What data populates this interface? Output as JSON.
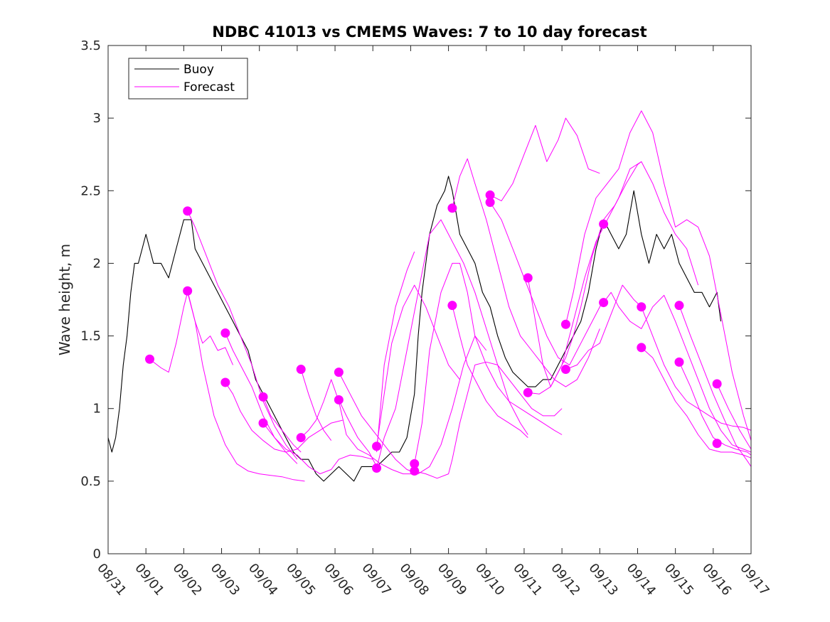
{
  "chart_data": {
    "type": "line",
    "title": "NDBC 41013 vs CMEMS Waves: 7 to 10 day forecast",
    "xlabel": "",
    "ylabel": "Wave height, m",
    "xlim": [
      0,
      17
    ],
    "ylim": [
      0,
      3.5
    ],
    "yticks": [
      0,
      0.5,
      1,
      1.5,
      2,
      2.5,
      3,
      3.5
    ],
    "ytick_labels": [
      "0",
      "0.5",
      "1",
      "1.5",
      "2",
      "2.5",
      "3",
      "3.5"
    ],
    "x_unit": "days since 08/31",
    "xtick_labels": [
      "08/31",
      "09/01",
      "09/02",
      "09/03",
      "09/04",
      "09/05",
      "09/06",
      "09/07",
      "09/08",
      "09/09",
      "09/10",
      "09/11",
      "09/12",
      "09/13",
      "09/14",
      "09/15",
      "09/16",
      "09/17"
    ],
    "legend": {
      "position": "top-left",
      "entries": [
        "Buoy",
        "Forecast"
      ]
    },
    "colors": {
      "buoy": "#000000",
      "forecast": "#ff00ff",
      "axes": "#262626"
    },
    "series": [
      {
        "name": "Buoy",
        "color": "#000000",
        "x": [
          0,
          0.1,
          0.2,
          0.3,
          0.4,
          0.5,
          0.6,
          0.7,
          0.8,
          0.9,
          1.0,
          1.2,
          1.4,
          1.6,
          1.8,
          2.0,
          2.1,
          2.2,
          2.3,
          2.5,
          2.7,
          2.9,
          3.1,
          3.3,
          3.5,
          3.7,
          3.9,
          4.1,
          4.3,
          4.5,
          4.7,
          4.9,
          5.1,
          5.3,
          5.5,
          5.7,
          5.9,
          6.1,
          6.3,
          6.5,
          6.7,
          6.9,
          7.1,
          7.3,
          7.5,
          7.7,
          7.9,
          8.1,
          8.2,
          8.3,
          8.4,
          8.5,
          8.7,
          8.9,
          9.0,
          9.1,
          9.2,
          9.3,
          9.5,
          9.7,
          9.9,
          10.1,
          10.3,
          10.5,
          10.7,
          10.9,
          11.1,
          11.3,
          11.5,
          11.7,
          11.9,
          12.1,
          12.3,
          12.5,
          12.7,
          12.9,
          13.1,
          13.3,
          13.5,
          13.7,
          13.9,
          14.1,
          14.3,
          14.5,
          14.7,
          14.9,
          15.1,
          15.3,
          15.5,
          15.7,
          15.9,
          16.1,
          16.2
        ],
        "values": [
          0.8,
          0.7,
          0.8,
          1.0,
          1.3,
          1.5,
          1.8,
          2.0,
          2.0,
          2.1,
          2.2,
          2.0,
          2.0,
          1.9,
          2.1,
          2.3,
          2.3,
          2.3,
          2.1,
          2.0,
          1.9,
          1.8,
          1.7,
          1.6,
          1.5,
          1.4,
          1.2,
          1.1,
          1.0,
          0.9,
          0.8,
          0.7,
          0.65,
          0.65,
          0.55,
          0.5,
          0.55,
          0.6,
          0.55,
          0.5,
          0.6,
          0.6,
          0.6,
          0.65,
          0.7,
          0.7,
          0.8,
          1.1,
          1.5,
          1.8,
          2.0,
          2.2,
          2.4,
          2.5,
          2.6,
          2.5,
          2.35,
          2.2,
          2.1,
          2.0,
          1.8,
          1.7,
          1.5,
          1.35,
          1.25,
          1.2,
          1.15,
          1.15,
          1.2,
          1.2,
          1.3,
          1.4,
          1.5,
          1.6,
          1.8,
          2.1,
          2.3,
          2.2,
          2.1,
          2.2,
          2.5,
          2.2,
          2.0,
          2.2,
          2.1,
          2.2,
          2.0,
          1.9,
          1.8,
          1.8,
          1.7,
          1.8,
          1.6
        ]
      },
      {
        "name": "Forecast",
        "color": "#ff00ff",
        "x": [
          1.1,
          1.4,
          1.6,
          1.8,
          2.0,
          2.1,
          2.3,
          2.5,
          2.7,
          2.9,
          3.1,
          3.3
        ],
        "values": [
          1.34,
          1.28,
          1.25,
          1.45,
          1.7,
          1.8,
          1.6,
          1.45,
          1.5,
          1.4,
          1.42,
          1.3
        ]
      },
      {
        "name": "Forecast",
        "color": "#ff00ff",
        "x": [
          2.1,
          2.3,
          2.5,
          2.8,
          3.1,
          3.4,
          3.7,
          4.0,
          4.3,
          4.6,
          4.9,
          5.2
        ],
        "values": [
          1.81,
          1.6,
          1.3,
          0.95,
          0.75,
          0.62,
          0.57,
          0.55,
          0.54,
          0.53,
          0.51,
          0.5
        ]
      },
      {
        "name": "Forecast",
        "color": "#ff00ff",
        "x": [
          2.1,
          2.3,
          2.6,
          2.9,
          3.2,
          3.5,
          3.8,
          4.1,
          4.4,
          4.7,
          5.0
        ],
        "values": [
          2.36,
          2.25,
          2.05,
          1.85,
          1.7,
          1.5,
          1.3,
          1.05,
          0.88,
          0.75,
          0.65
        ]
      },
      {
        "name": "Forecast",
        "color": "#ff00ff",
        "x": [
          3.1,
          3.3,
          3.5,
          3.8,
          4.1,
          4.4,
          4.7,
          5.0,
          5.3,
          5.6,
          5.9,
          6.2
        ],
        "values": [
          1.18,
          1.1,
          0.98,
          0.85,
          0.78,
          0.72,
          0.7,
          0.72,
          0.8,
          0.85,
          0.9,
          0.92
        ]
      },
      {
        "name": "Forecast",
        "color": "#ff00ff",
        "x": [
          3.1,
          3.3,
          3.5,
          3.8,
          4.1,
          4.4,
          4.7,
          5.0
        ],
        "values": [
          1.52,
          1.4,
          1.3,
          1.15,
          0.95,
          0.8,
          0.7,
          0.62
        ]
      },
      {
        "name": "Forecast",
        "color": "#ff00ff",
        "x": [
          4.1,
          4.3,
          4.6,
          4.9,
          5.1
        ],
        "values": [
          1.08,
          0.95,
          0.85,
          0.75,
          0.7
        ]
      },
      {
        "name": "Forecast",
        "color": "#ff00ff",
        "x": [
          4.1,
          4.4,
          4.7,
          5.0,
          5.3,
          5.6,
          5.9,
          6.1,
          6.4,
          6.7,
          7.0
        ],
        "values": [
          0.9,
          0.8,
          0.72,
          0.68,
          0.6,
          0.55,
          0.58,
          0.65,
          0.68,
          0.67,
          0.65
        ]
      },
      {
        "name": "Forecast",
        "color": "#ff00ff",
        "x": [
          5.1,
          5.3,
          5.5,
          5.7,
          5.9,
          6.1,
          6.3,
          6.6,
          6.9,
          7.2,
          7.5,
          7.8,
          8.1
        ],
        "values": [
          0.8,
          0.85,
          0.92,
          1.05,
          1.2,
          1.05,
          0.82,
          0.72,
          0.68,
          0.62,
          0.58,
          0.55,
          0.55
        ]
      },
      {
        "name": "Forecast",
        "color": "#ff00ff",
        "x": [
          5.1,
          5.3,
          5.5,
          5.7,
          5.9
        ],
        "values": [
          1.27,
          1.1,
          0.95,
          0.85,
          0.78
        ]
      },
      {
        "name": "Forecast",
        "color": "#ff00ff",
        "x": [
          6.1,
          6.4,
          6.7,
          7.0,
          7.3,
          7.6,
          7.9,
          8.2,
          8.5,
          8.8,
          9.1,
          9.4,
          9.7,
          10.0
        ],
        "values": [
          1.25,
          1.1,
          0.95,
          0.85,
          0.75,
          0.65,
          0.58,
          0.55,
          0.6,
          0.75,
          1.0,
          1.3,
          1.5,
          1.4
        ]
      },
      {
        "name": "Forecast",
        "color": "#ff00ff",
        "x": [
          6.1,
          6.3,
          6.6,
          6.9,
          7.1
        ],
        "values": [
          1.06,
          0.95,
          0.8,
          0.7,
          0.6
        ]
      },
      {
        "name": "Forecast",
        "color": "#ff00ff",
        "x": [
          7.1,
          7.3,
          7.5,
          7.8,
          8.1,
          8.4,
          8.7,
          9.0,
          9.3
        ],
        "values": [
          0.74,
          1.1,
          1.45,
          1.7,
          1.85,
          1.7,
          1.5,
          1.3,
          1.2
        ]
      },
      {
        "name": "Forecast",
        "color": "#ff00ff",
        "x": [
          7.1,
          7.3,
          7.6,
          7.9,
          8.2,
          8.5,
          8.8,
          9.1,
          9.4,
          9.7,
          10.0,
          10.3,
          10.6,
          10.9,
          11.1
        ],
        "values": [
          0.59,
          0.8,
          1.0,
          1.4,
          1.8,
          2.2,
          2.3,
          2.15,
          2.0,
          1.8,
          1.55,
          1.3,
          1.05,
          0.9,
          0.82
        ]
      },
      {
        "name": "Forecast",
        "color": "#ff00ff",
        "x": [
          7.1,
          7.3,
          7.6,
          7.9,
          8.1
        ],
        "values": [
          0.7,
          1.3,
          1.7,
          1.95,
          2.08
        ]
      },
      {
        "name": "Forecast",
        "color": "#ff00ff",
        "x": [
          8.1,
          8.3,
          8.5,
          8.8,
          9.1,
          9.3,
          9.5,
          9.7,
          10.0,
          10.3,
          10.6,
          10.9,
          11.2,
          11.5,
          11.8,
          12.0
        ],
        "values": [
          0.62,
          0.9,
          1.4,
          1.8,
          2.0,
          2.0,
          1.8,
          1.5,
          1.3,
          1.15,
          1.05,
          1.0,
          0.95,
          0.9,
          0.85,
          0.82
        ]
      },
      {
        "name": "Forecast",
        "color": "#ff00ff",
        "x": [
          8.1,
          8.4,
          8.7,
          9.0,
          9.1,
          9.3,
          9.5,
          9.7,
          10.0,
          10.3,
          10.6,
          10.9,
          11.2,
          11.5,
          11.8,
          12.0
        ],
        "values": [
          0.57,
          0.55,
          0.52,
          0.55,
          0.65,
          0.9,
          1.1,
          1.3,
          1.32,
          1.3,
          1.2,
          1.1,
          1.0,
          0.95,
          0.95,
          1.0
        ]
      },
      {
        "name": "Forecast",
        "color": "#ff00ff",
        "x": [
          9.1,
          9.3,
          9.5,
          9.7,
          10.0,
          10.3,
          10.6,
          10.9,
          11.2,
          11.5,
          11.8,
          12.1,
          12.4,
          12.7,
          13.0
        ],
        "values": [
          2.38,
          2.6,
          2.72,
          2.55,
          2.3,
          2.0,
          1.7,
          1.5,
          1.4,
          1.3,
          1.2,
          1.15,
          1.2,
          1.35,
          1.55
        ]
      },
      {
        "name": "Forecast",
        "color": "#ff00ff",
        "x": [
          9.1,
          9.3,
          9.5,
          9.7,
          10.0,
          10.3,
          10.6,
          10.9,
          11.1
        ],
        "values": [
          1.71,
          1.5,
          1.3,
          1.2,
          1.05,
          0.95,
          0.9,
          0.85,
          0.8
        ]
      },
      {
        "name": "Forecast",
        "color": "#ff00ff",
        "x": [
          10.1,
          10.4,
          10.7,
          11.0,
          11.3,
          11.6,
          11.9,
          12.1,
          12.4,
          12.7,
          13.0
        ],
        "values": [
          2.47,
          2.43,
          2.55,
          2.75,
          2.95,
          2.7,
          2.85,
          3.0,
          2.88,
          2.65,
          2.62
        ]
      },
      {
        "name": "Forecast",
        "color": "#ff00ff",
        "x": [
          10.1,
          10.4,
          10.7,
          11.0,
          11.3,
          11.6,
          11.9,
          12.2,
          12.5,
          12.8,
          13.1
        ],
        "values": [
          2.42,
          2.3,
          2.1,
          1.9,
          1.7,
          1.5,
          1.35,
          1.3,
          1.45,
          1.6,
          1.75
        ]
      },
      {
        "name": "Forecast",
        "color": "#ff00ff",
        "x": [
          11.1,
          11.3,
          11.5,
          11.7,
          11.9,
          12.1,
          12.3,
          12.5,
          12.8,
          13.1,
          13.4,
          13.7,
          14.0,
          14.1
        ],
        "values": [
          1.9,
          1.6,
          1.3,
          1.15,
          1.25,
          1.35,
          1.5,
          1.7,
          2.05,
          2.3,
          2.4,
          2.55,
          2.68,
          2.7
        ]
      },
      {
        "name": "Forecast",
        "color": "#ff00ff",
        "x": [
          11.1,
          11.4,
          11.7,
          12.0,
          12.3,
          12.6,
          12.9,
          13.2,
          13.5,
          13.8,
          14.1,
          14.4,
          14.7,
          15.0,
          15.3,
          15.6
        ],
        "values": [
          1.11,
          1.1,
          1.15,
          1.3,
          1.6,
          1.9,
          2.15,
          2.3,
          2.45,
          2.65,
          2.7,
          2.55,
          2.35,
          2.2,
          2.1,
          1.85
        ]
      },
      {
        "name": "Forecast",
        "color": "#ff00ff",
        "x": [
          12.1,
          12.3,
          12.6,
          12.9,
          13.2,
          13.5,
          13.8,
          14.1,
          14.4,
          14.7,
          15.0,
          15.3,
          15.6,
          15.9,
          16.2,
          16.5,
          16.8,
          17.0
        ],
        "values": [
          1.58,
          1.8,
          2.2,
          2.45,
          2.55,
          2.65,
          2.9,
          3.05,
          2.9,
          2.55,
          2.25,
          2.3,
          2.25,
          2.05,
          1.65,
          1.25,
          0.95,
          0.78
        ]
      },
      {
        "name": "Forecast",
        "color": "#ff00ff",
        "x": [
          12.1,
          12.4,
          12.7,
          13.0,
          13.3,
          13.6,
          13.9,
          14.1,
          14.4,
          14.7,
          15.0,
          15.3,
          15.6,
          15.9,
          16.2,
          16.5,
          16.8,
          17.0
        ],
        "values": [
          1.27,
          1.3,
          1.4,
          1.45,
          1.65,
          1.85,
          1.75,
          1.7,
          1.5,
          1.3,
          1.15,
          1.05,
          1.0,
          0.95,
          0.9,
          0.88,
          0.87,
          0.85
        ]
      },
      {
        "name": "Forecast",
        "color": "#ff00ff",
        "x": [
          13.1,
          13.3,
          13.5,
          13.8,
          14.1,
          14.4,
          14.7,
          15.0,
          15.3,
          15.6,
          15.9,
          16.2,
          16.5,
          16.8,
          17.0
        ],
        "values": [
          1.73,
          1.8,
          1.7,
          1.6,
          1.55,
          1.7,
          1.78,
          1.6,
          1.4,
          1.2,
          1.0,
          0.85,
          0.75,
          0.72,
          0.7
        ]
      },
      {
        "name": "Forecast",
        "color": "#ff00ff",
        "x": [
          14.1,
          14.4,
          14.7,
          15.0,
          15.3,
          15.6,
          15.9,
          16.2,
          16.5,
          16.8,
          17.0
        ],
        "values": [
          1.42,
          1.35,
          1.2,
          1.05,
          0.95,
          0.82,
          0.72,
          0.7,
          0.7,
          0.68,
          0.66
        ]
      },
      {
        "name": "Forecast",
        "color": "#ff00ff",
        "x": [
          15.1,
          15.4,
          15.7,
          16.0,
          16.3,
          16.6,
          16.9,
          17.0
        ],
        "values": [
          1.71,
          1.5,
          1.3,
          1.1,
          0.92,
          0.75,
          0.64,
          0.6
        ]
      },
      {
        "name": "Forecast",
        "color": "#ff00ff",
        "x": [
          15.1,
          15.4,
          15.7,
          16.0,
          16.3,
          16.6,
          16.9,
          17.0
        ],
        "values": [
          1.32,
          1.15,
          0.95,
          0.8,
          0.75,
          0.72,
          0.7,
          0.68
        ]
      },
      {
        "name": "Forecast",
        "color": "#ff00ff",
        "x": [
          16.1,
          16.4,
          16.7,
          17.0
        ],
        "values": [
          1.17,
          1.0,
          0.85,
          0.72
        ]
      }
    ],
    "forecast_markers": [
      {
        "x": 1.1,
        "y": 1.34
      },
      {
        "x": 2.1,
        "y": 2.36
      },
      {
        "x": 2.1,
        "y": 1.81
      },
      {
        "x": 3.1,
        "y": 1.52
      },
      {
        "x": 3.1,
        "y": 1.18
      },
      {
        "x": 4.1,
        "y": 1.08
      },
      {
        "x": 4.1,
        "y": 0.9
      },
      {
        "x": 5.1,
        "y": 1.27
      },
      {
        "x": 5.1,
        "y": 0.8
      },
      {
        "x": 6.1,
        "y": 1.25
      },
      {
        "x": 6.1,
        "y": 1.06
      },
      {
        "x": 7.1,
        "y": 0.74
      },
      {
        "x": 7.1,
        "y": 0.59
      },
      {
        "x": 8.1,
        "y": 0.62
      },
      {
        "x": 8.1,
        "y": 0.57
      },
      {
        "x": 9.1,
        "y": 2.38
      },
      {
        "x": 9.1,
        "y": 1.71
      },
      {
        "x": 10.1,
        "y": 2.47
      },
      {
        "x": 10.1,
        "y": 2.42
      },
      {
        "x": 11.1,
        "y": 1.9
      },
      {
        "x": 11.1,
        "y": 1.11
      },
      {
        "x": 12.1,
        "y": 1.58
      },
      {
        "x": 12.1,
        "y": 1.27
      },
      {
        "x": 13.1,
        "y": 2.27
      },
      {
        "x": 13.1,
        "y": 1.73
      },
      {
        "x": 14.1,
        "y": 1.7
      },
      {
        "x": 14.1,
        "y": 1.42
      },
      {
        "x": 15.1,
        "y": 1.71
      },
      {
        "x": 15.1,
        "y": 1.32
      },
      {
        "x": 16.1,
        "y": 1.17
      },
      {
        "x": 16.1,
        "y": 0.76
      }
    ]
  }
}
